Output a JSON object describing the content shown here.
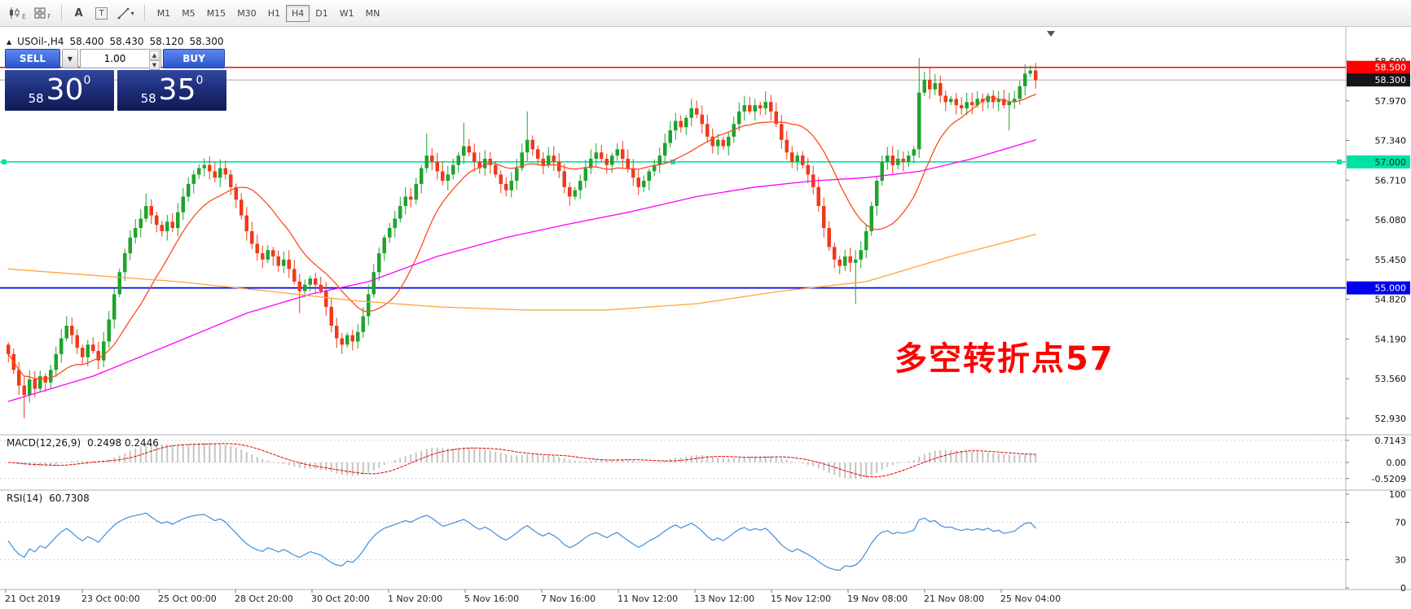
{
  "colors": {
    "up": "#1fa32e",
    "down": "#ef3a1b",
    "ma_fast": "#ff4a21",
    "ma_mid": "#ff00ff",
    "ma_slow": "#ffa43b",
    "macd_hist": "#c4c4c4",
    "macd_signal": "#e00000",
    "rsi_line": "#3e8ede",
    "annotation": "#ff0000"
  },
  "toolbar": {
    "tools": [
      {
        "name": "charts",
        "label": "E"
      },
      {
        "name": "objects",
        "label": "F"
      },
      {
        "name": "text",
        "label": "A"
      },
      {
        "name": "textbox",
        "label": "T"
      },
      {
        "name": "line-studies",
        "label": ""
      }
    ],
    "timeframes": [
      {
        "label": "M1",
        "active": false
      },
      {
        "label": "M5",
        "active": false
      },
      {
        "label": "M15",
        "active": false
      },
      {
        "label": "M30",
        "active": false
      },
      {
        "label": "H1",
        "active": false
      },
      {
        "label": "H4",
        "active": true
      },
      {
        "label": "D1",
        "active": false
      },
      {
        "label": "W1",
        "active": false
      },
      {
        "label": "MN",
        "active": false
      }
    ]
  },
  "header": {
    "expander": "▲",
    "symbol": "USOil-,H4",
    "open": "58.400",
    "high": "58.430",
    "low": "58.120",
    "close": "58.300"
  },
  "one_click": {
    "sell_label": "SELL",
    "buy_label": "BUY",
    "volume": "1.00",
    "sell_price": {
      "small": "58",
      "big": "30",
      "sup": "0"
    },
    "buy_price": {
      "small": "58",
      "big": "35",
      "sup": "0"
    }
  },
  "annotation": {
    "text": "多空转折点57"
  },
  "price_axis": {
    "labels": [
      {
        "label": "58.600",
        "price": 58.6
      },
      {
        "label": "57.970",
        "price": 57.97
      },
      {
        "label": "57.340",
        "price": 57.34
      },
      {
        "label": "56.710",
        "price": 56.71
      },
      {
        "label": "56.080",
        "price": 56.08
      },
      {
        "label": "55.450",
        "price": 55.45
      },
      {
        "label": "54.820",
        "price": 54.82
      },
      {
        "label": "54.190",
        "price": 54.19
      },
      {
        "label": "53.560",
        "price": 53.56
      },
      {
        "label": "52.930",
        "price": 52.93
      }
    ],
    "badges": [
      {
        "label": "58.500",
        "price": 58.5,
        "bg": "#ff0000",
        "fg": "#ffffff"
      },
      {
        "label": "58.300",
        "price": 58.3,
        "bg": "#15151a",
        "fg": "#ffffff"
      },
      {
        "label": "57.000",
        "price": 57.0,
        "bg": "#00e2a4",
        "fg": "#00331f"
      },
      {
        "label": "55.000",
        "price": 55.0,
        "bg": "#0000ee",
        "fg": "#ffffff"
      }
    ]
  },
  "hlines": [
    {
      "price": 58.5,
      "color": "#ff0000",
      "w": 1.4,
      "style": "solid",
      "handles": false
    },
    {
      "price": 58.3,
      "color": "#a8a8a8",
      "w": 1.0,
      "style": "solid",
      "handles": false
    },
    {
      "price": 57.0,
      "color": "#00e2a4",
      "w": 1.6,
      "style": "solid",
      "handles": true
    },
    {
      "price": 55.0,
      "color": "#0000ee",
      "w": 1.8,
      "style": "solid",
      "handles": false
    }
  ],
  "macd_panel": {
    "label": "MACD(12,26,9)",
    "values": "0.2498 0.2446",
    "axis": [
      {
        "label": "0.7143",
        "v": 0.7143
      },
      {
        "label": "0.00",
        "v": 0
      },
      {
        "label": "-0.5209",
        "v": -0.5209
      }
    ]
  },
  "rsi_panel": {
    "label": "RSI(14)",
    "value": "60.7308",
    "axis": [
      {
        "label": "100",
        "v": 100
      },
      {
        "label": "70",
        "v": 70
      },
      {
        "label": "30",
        "v": 30
      },
      {
        "label": "0",
        "v": 0
      }
    ],
    "levels": [
      70,
      30
    ]
  },
  "time_axis": [
    "21 Oct 2019",
    "23 Oct 00:00",
    "25 Oct 00:00",
    "28 Oct 20:00",
    "30 Oct 20:00",
    "1 Nov 20:00",
    "5 Nov 16:00",
    "7 Nov 16:00",
    "11 Nov 12:00",
    "13 Nov 12:00",
    "15 Nov 12:00",
    "19 Nov 08:00",
    "21 Nov 08:00",
    "25 Nov 04:00"
  ],
  "chart_data": {
    "type": "candlestick",
    "symbol": "USOil",
    "timeframe": "H4",
    "ylim": [
      52.93,
      58.65
    ],
    "first_open": 54.1,
    "closes": [
      53.95,
      53.7,
      53.45,
      53.3,
      53.55,
      53.4,
      53.6,
      53.5,
      53.7,
      53.95,
      54.2,
      54.4,
      54.25,
      54.05,
      53.9,
      54.1,
      54.0,
      53.85,
      54.15,
      54.5,
      54.9,
      55.25,
      55.55,
      55.8,
      55.95,
      56.1,
      56.3,
      56.15,
      56.0,
      55.9,
      56.05,
      55.95,
      56.2,
      56.45,
      56.65,
      56.8,
      56.9,
      56.95,
      56.85,
      56.75,
      56.9,
      56.8,
      56.6,
      56.4,
      56.15,
      55.9,
      55.7,
      55.55,
      55.45,
      55.6,
      55.5,
      55.35,
      55.45,
      55.3,
      55.1,
      54.95,
      55.05,
      55.15,
      55.05,
      54.95,
      54.7,
      54.4,
      54.2,
      54.1,
      54.25,
      54.15,
      54.3,
      54.55,
      54.9,
      55.25,
      55.55,
      55.8,
      55.95,
      56.1,
      56.3,
      56.45,
      56.4,
      56.65,
      56.9,
      57.1,
      57.0,
      56.85,
      56.7,
      56.8,
      56.95,
      57.1,
      57.25,
      57.15,
      57.0,
      56.9,
      57.05,
      56.95,
      56.8,
      56.65,
      56.55,
      56.7,
      56.9,
      57.15,
      57.35,
      57.2,
      57.05,
      56.95,
      57.1,
      57.0,
      56.85,
      56.6,
      56.45,
      56.55,
      56.7,
      56.9,
      57.05,
      57.15,
      57.05,
      56.95,
      57.1,
      57.2,
      57.05,
      56.9,
      56.75,
      56.6,
      56.7,
      56.85,
      56.95,
      57.1,
      57.3,
      57.5,
      57.65,
      57.55,
      57.7,
      57.85,
      57.75,
      57.6,
      57.4,
      57.25,
      57.35,
      57.25,
      57.4,
      57.6,
      57.8,
      57.9,
      57.8,
      57.9,
      57.85,
      57.95,
      57.8,
      57.6,
      57.35,
      57.15,
      57.0,
      57.1,
      56.95,
      56.8,
      56.6,
      56.3,
      55.95,
      55.65,
      55.45,
      55.35,
      55.5,
      55.4,
      55.45,
      55.6,
      55.9,
      56.3,
      56.7,
      57.0,
      57.1,
      56.95,
      57.05,
      57.0,
      57.1,
      57.2,
      58.1,
      58.3,
      58.15,
      58.25,
      58.05,
      57.95,
      58.0,
      57.9,
      57.85,
      57.95,
      57.9,
      58.0,
      57.95,
      58.05,
      57.95,
      58.0,
      57.9,
      57.95,
      58.0,
      58.2,
      58.4,
      58.45,
      58.3
    ],
    "wick_overrides": {
      "3": {
        "l": 52.93
      },
      "11": {
        "h": 54.55
      },
      "26": {
        "h": 56.5
      },
      "37": {
        "h": 57.05
      },
      "55": {
        "l": 54.6
      },
      "62": {
        "l": 54.05
      },
      "79": {
        "h": 57.45
      },
      "86": {
        "h": 57.62
      },
      "98": {
        "h": 57.8
      },
      "129": {
        "h": 58.0
      },
      "139": {
        "h": 58.05
      },
      "143": {
        "h": 58.12
      },
      "157": {
        "l": 55.22
      },
      "160": {
        "l": 54.75
      },
      "172": {
        "h": 58.65
      },
      "174": {
        "h": 58.5
      },
      "189": {
        "l": 57.5
      },
      "192": {
        "h": 58.55
      }
    },
    "ma_mid_anchors": [
      [
        0,
        53.2
      ],
      [
        16,
        53.6
      ],
      [
        32,
        54.15
      ],
      [
        45,
        54.6
      ],
      [
        57,
        54.9
      ],
      [
        68,
        55.1
      ],
      [
        81,
        55.5
      ],
      [
        94,
        55.8
      ],
      [
        105,
        56.0
      ],
      [
        117,
        56.2
      ],
      [
        130,
        56.45
      ],
      [
        141,
        56.6
      ],
      [
        152,
        56.7
      ],
      [
        162,
        56.75
      ],
      [
        172,
        56.85
      ],
      [
        182,
        57.05
      ],
      [
        194,
        57.35
      ]
    ],
    "ma_slow_anchors": [
      [
        0,
        55.3
      ],
      [
        16,
        55.2
      ],
      [
        32,
        55.1
      ],
      [
        49,
        54.95
      ],
      [
        65,
        54.8
      ],
      [
        81,
        54.7
      ],
      [
        97,
        54.65
      ],
      [
        113,
        54.65
      ],
      [
        130,
        54.75
      ],
      [
        146,
        54.95
      ],
      [
        162,
        55.1
      ],
      [
        178,
        55.5
      ],
      [
        194,
        55.85
      ]
    ]
  }
}
